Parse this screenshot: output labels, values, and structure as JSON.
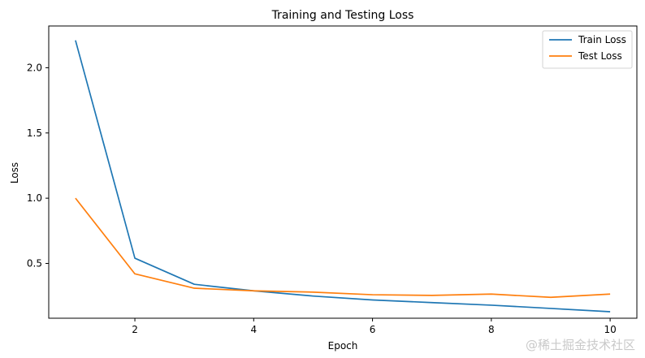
{
  "chart_data": {
    "type": "line",
    "title": "Training and Testing Loss",
    "xlabel": "Epoch",
    "ylabel": "Loss",
    "x": [
      1,
      2,
      3,
      4,
      5,
      6,
      7,
      8,
      9,
      10
    ],
    "xlim": [
      0.55,
      10.45
    ],
    "ylim": [
      0.08,
      2.32
    ],
    "xticks": [
      2,
      4,
      6,
      8,
      10
    ],
    "yticks": [
      0.5,
      1.0,
      1.5,
      2.0
    ],
    "xtick_labels": [
      "2",
      "4",
      "6",
      "8",
      "10"
    ],
    "ytick_labels": [
      "0.5",
      "1.0",
      "1.5",
      "2.0"
    ],
    "grid": false,
    "legend_position": "top-right",
    "series": [
      {
        "name": "Train Loss",
        "color": "#1f77b4",
        "values": [
          2.21,
          0.54,
          0.34,
          0.29,
          0.25,
          0.22,
          0.2,
          0.18,
          0.155,
          0.13
        ]
      },
      {
        "name": "Test Loss",
        "color": "#ff7f0e",
        "values": [
          1.0,
          0.42,
          0.31,
          0.29,
          0.28,
          0.26,
          0.255,
          0.265,
          0.24,
          0.265
        ]
      }
    ]
  },
  "watermark": "@稀土掘金技术社区"
}
